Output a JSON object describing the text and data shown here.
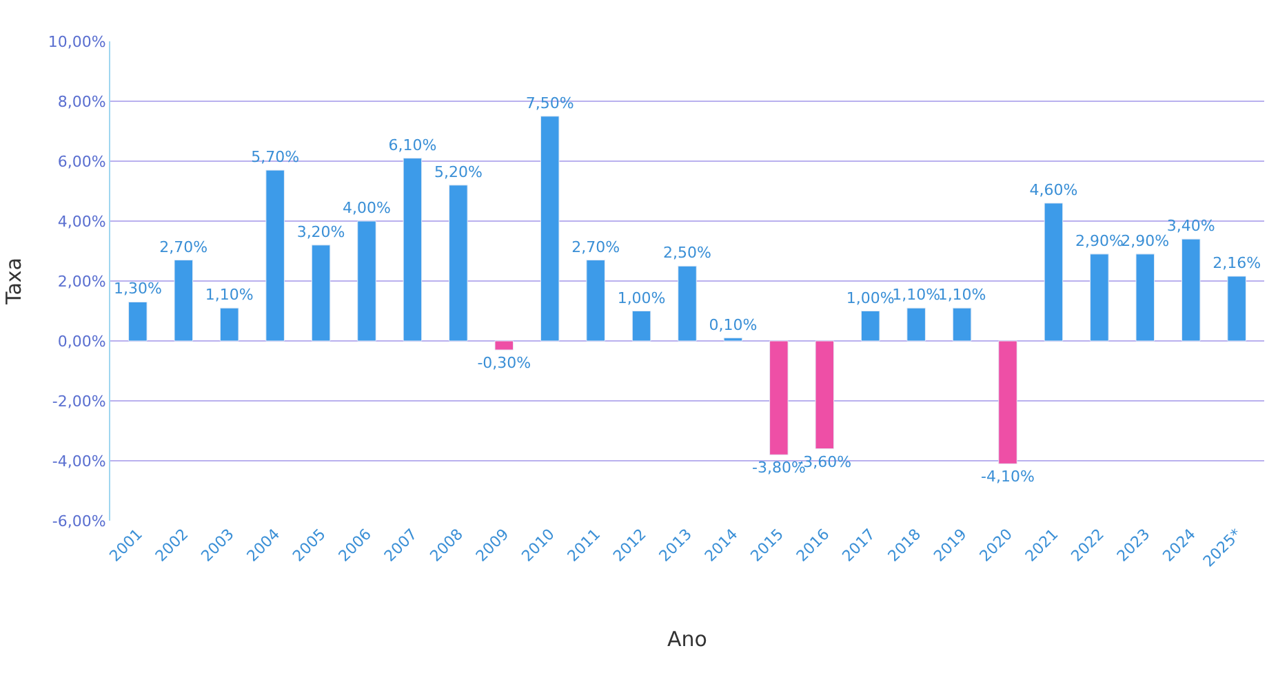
{
  "chart_data": {
    "type": "bar",
    "xlabel": "Ano",
    "ylabel": "Taxa",
    "categories": [
      "2001",
      "2002",
      "2003",
      "2004",
      "2005",
      "2006",
      "2007",
      "2008",
      "2009",
      "2010",
      "2011",
      "2012",
      "2013",
      "2014",
      "2015",
      "2016",
      "2017",
      "2018",
      "2019",
      "2020",
      "2021",
      "2022",
      "2023",
      "2024",
      "2025*"
    ],
    "values": [
      1.3,
      2.7,
      1.1,
      5.7,
      3.2,
      4.0,
      6.1,
      5.2,
      -0.3,
      7.5,
      2.7,
      1.0,
      2.5,
      0.1,
      -3.8,
      -3.6,
      1.0,
      1.1,
      1.1,
      -4.1,
      4.6,
      2.9,
      2.9,
      3.4,
      2.16
    ],
    "value_labels": [
      "1,30%",
      "2,70%",
      "1,10%",
      "5,70%",
      "3,20%",
      "4,00%",
      "6,10%",
      "5,20%",
      "-0,30%",
      "7,50%",
      "2,70%",
      "1,00%",
      "2,50%",
      "0,10%",
      "-3,80%",
      "-3,60%",
      "1,00%",
      "1,10%",
      "1,10%",
      "-4,10%",
      "4,60%",
      "2,90%",
      "2,90%",
      "3,40%",
      "2,16%"
    ],
    "colors": [
      "#3d9be9",
      "#3d9be9",
      "#3d9be9",
      "#3d9be9",
      "#3d9be9",
      "#3d9be9",
      "#3d9be9",
      "#3d9be9",
      "#ee4fa6",
      "#3d9be9",
      "#3d9be9",
      "#3d9be9",
      "#3d9be9",
      "#3d9be9",
      "#ee4fa6",
      "#ee4fa6",
      "#3d9be9",
      "#3d9be9",
      "#3d9be9",
      "#ee4fa6",
      "#3d9be9",
      "#3d9be9",
      "#3d9be9",
      "#3d9be9",
      "#3d9be9"
    ],
    "ylim": [
      -6,
      10
    ],
    "yticks": [
      {
        "value": -6,
        "label": "-6,00%"
      },
      {
        "value": -4,
        "label": "-4,00%"
      },
      {
        "value": -2,
        "label": "-2,00%"
      },
      {
        "value": 0,
        "label": "0,00%"
      },
      {
        "value": 2,
        "label": "2,00%"
      },
      {
        "value": 4,
        "label": "4,00%"
      },
      {
        "value": 6,
        "label": "6,00%"
      },
      {
        "value": 8,
        "label": "8,00%"
      },
      {
        "value": 10,
        "label": "10,00%"
      }
    ],
    "grid": "y",
    "legend": false
  }
}
